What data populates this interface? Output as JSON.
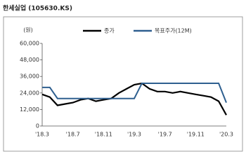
{
  "chart_data": {
    "type": "line",
    "title": "한세실업 (105630.KS)",
    "y_label": "(원)",
    "categories": [
      "'18.3",
      null,
      null,
      null,
      "'18.7",
      null,
      null,
      null,
      "'18.11",
      null,
      null,
      null,
      "'19.3",
      null,
      null,
      null,
      "'19.7",
      null,
      null,
      null,
      "'19.11",
      null,
      null,
      null,
      "'20.3"
    ],
    "series": [
      {
        "name": "종가",
        "color": "#000000",
        "values": [
          23000,
          21000,
          15000,
          16000,
          17000,
          19000,
          20000,
          18000,
          19000,
          20000,
          24000,
          27000,
          30000,
          31000,
          27000,
          25000,
          25000,
          24000,
          25000,
          24000,
          23000,
          22000,
          21000,
          18000,
          8000
        ]
      },
      {
        "name": "목표주가(12M)",
        "color": "#2e5f8f",
        "values": [
          28000,
          28000,
          20000,
          20000,
          20000,
          20000,
          20000,
          20000,
          20000,
          20000,
          20000,
          20000,
          20000,
          31000,
          31000,
          31000,
          31000,
          31000,
          31000,
          31000,
          31000,
          31000,
          31000,
          31000,
          17000
        ]
      }
    ],
    "ylim": [
      0,
      60000
    ],
    "yticks": [
      0,
      {
        "value": 12000,
        "label": "12,000"
      },
      {
        "value": 24000,
        "label": "24,000"
      },
      {
        "value": 36000,
        "label": "36,000"
      },
      {
        "value": 48000,
        "label": "48,000"
      },
      {
        "value": 60000,
        "label": "60,000"
      }
    ],
    "grid": false
  }
}
